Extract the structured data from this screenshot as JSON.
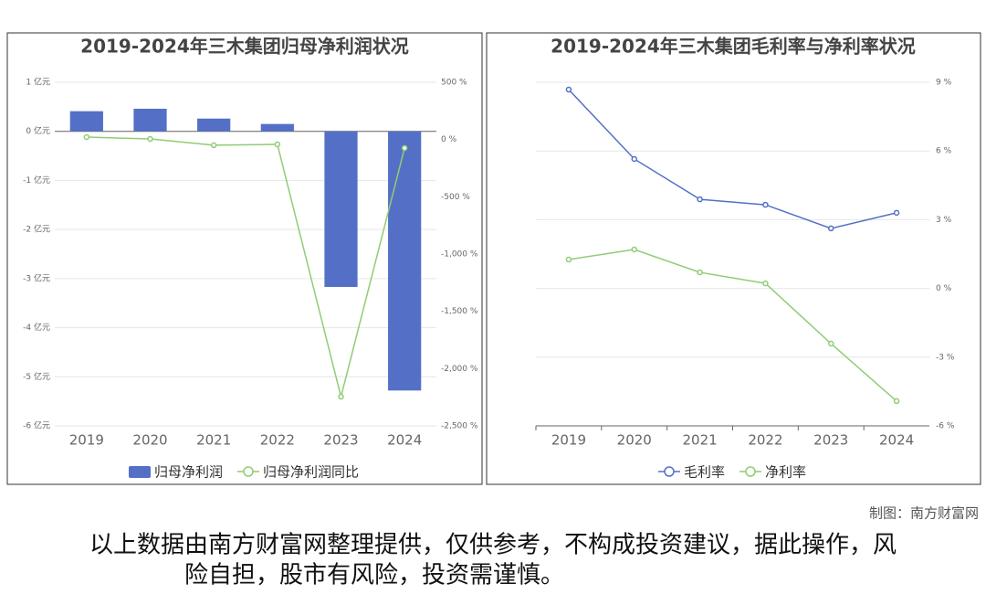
{
  "chart_data": [
    {
      "type": "bar",
      "title": "2019-2024年三木集团归母净利润状况",
      "categories": [
        "2019",
        "2020",
        "2021",
        "2022",
        "2023",
        "2024"
      ],
      "series": [
        {
          "name": "归母净利润",
          "type": "bar",
          "color": "#5470c6",
          "values": [
            0.41,
            0.46,
            0.26,
            0.15,
            -3.17,
            -5.28
          ]
        },
        {
          "name": "归母净利润同比",
          "type": "line",
          "axis": "y2",
          "color": "#91cc75",
          "values": [
            21,
            5,
            -50,
            -43,
            -2245,
            -74
          ]
        }
      ],
      "ylim": [
        -6,
        1
      ],
      "yticks": [
        {
          "value": -6,
          "label": "-6 亿元"
        },
        {
          "value": -5,
          "label": "-5 亿元"
        },
        {
          "value": -4,
          "label": "-4 亿元"
        },
        {
          "value": -3,
          "label": "-3 亿元"
        },
        {
          "value": -2,
          "label": "-2 亿元"
        },
        {
          "value": -1,
          "label": "-1 亿元"
        },
        {
          "value": 0,
          "label": "0 亿元"
        },
        {
          "value": 1,
          "label": "1 亿元"
        }
      ],
      "y2lim": [
        -2500,
        500
      ],
      "y2ticks": [
        {
          "value": -2500,
          "label": "-2,500 %"
        },
        {
          "value": -2000,
          "label": "-2,000 %"
        },
        {
          "value": -1500,
          "label": "-1,500 %"
        },
        {
          "value": -1000,
          "label": "-1,000 %"
        },
        {
          "value": -500,
          "label": "-500 %"
        },
        {
          "value": 0,
          "label": "0 %"
        },
        {
          "value": 500,
          "label": "500 %"
        }
      ],
      "grid": true
    },
    {
      "type": "line",
      "title": "2019-2024年三木集团毛利率与净利率状况",
      "categories": [
        "2019",
        "2020",
        "2021",
        "2022",
        "2023",
        "2024"
      ],
      "series": [
        {
          "name": "毛利率",
          "type": "line",
          "color": "#5470c6",
          "values": [
            8.68,
            5.65,
            3.89,
            3.65,
            2.62,
            3.3
          ]
        },
        {
          "name": "净利率",
          "type": "line",
          "color": "#91cc75",
          "values": [
            1.26,
            1.7,
            0.7,
            0.22,
            -2.41,
            -4.92
          ]
        }
      ],
      "ylim": [
        -6,
        9
      ],
      "yaxis_position": "right",
      "yticks": [
        {
          "value": -6,
          "label": "-6 %"
        },
        {
          "value": -3,
          "label": "-3 %"
        },
        {
          "value": 0,
          "label": "0 %"
        },
        {
          "value": 3,
          "label": "3 %"
        },
        {
          "value": 6,
          "label": "6 %"
        },
        {
          "value": 9,
          "label": "9 %"
        }
      ],
      "grid": true
    }
  ],
  "credit": "制图：南方财富网",
  "disclaimer": [
    "以上数据由南方财富网整理提供，仅供参考，不构成投资建议，据此操作，风",
    "险自担，股市有风险，投资需谨慎。"
  ]
}
